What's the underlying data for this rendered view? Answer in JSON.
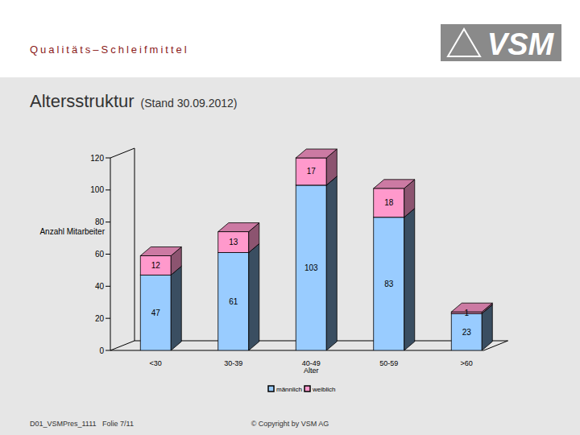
{
  "slide": {
    "header": "Qualitäts–Schleifmittel",
    "logo": "VSM",
    "footer_left": "D01_VSMPres_1111   Folie 7/11",
    "footer_center": "© Copyright by VSM AG"
  },
  "chart_data": {
    "type": "bar",
    "title": "Altersstruktur",
    "subtitle": "(Stand 30.09.2012)",
    "y_label": "Anzahl Mitarbeiter",
    "x_label": "Alter",
    "categories": [
      "<30",
      "30-39",
      "40-49",
      "50-59",
      ">60"
    ],
    "series": [
      {
        "name": "männlich",
        "color": "#99ccff",
        "values": [
          47,
          61,
          103,
          83,
          23
        ]
      },
      {
        "name": "weiblich",
        "color": "#ff99cc",
        "values": [
          12,
          13,
          17,
          18,
          1
        ]
      }
    ],
    "stacked": true,
    "data_labels": true,
    "grid": false,
    "legend": "bottom",
    "ylim": [
      0,
      120
    ],
    "yticks": [
      0,
      20,
      40,
      60,
      80,
      100,
      120
    ]
  }
}
